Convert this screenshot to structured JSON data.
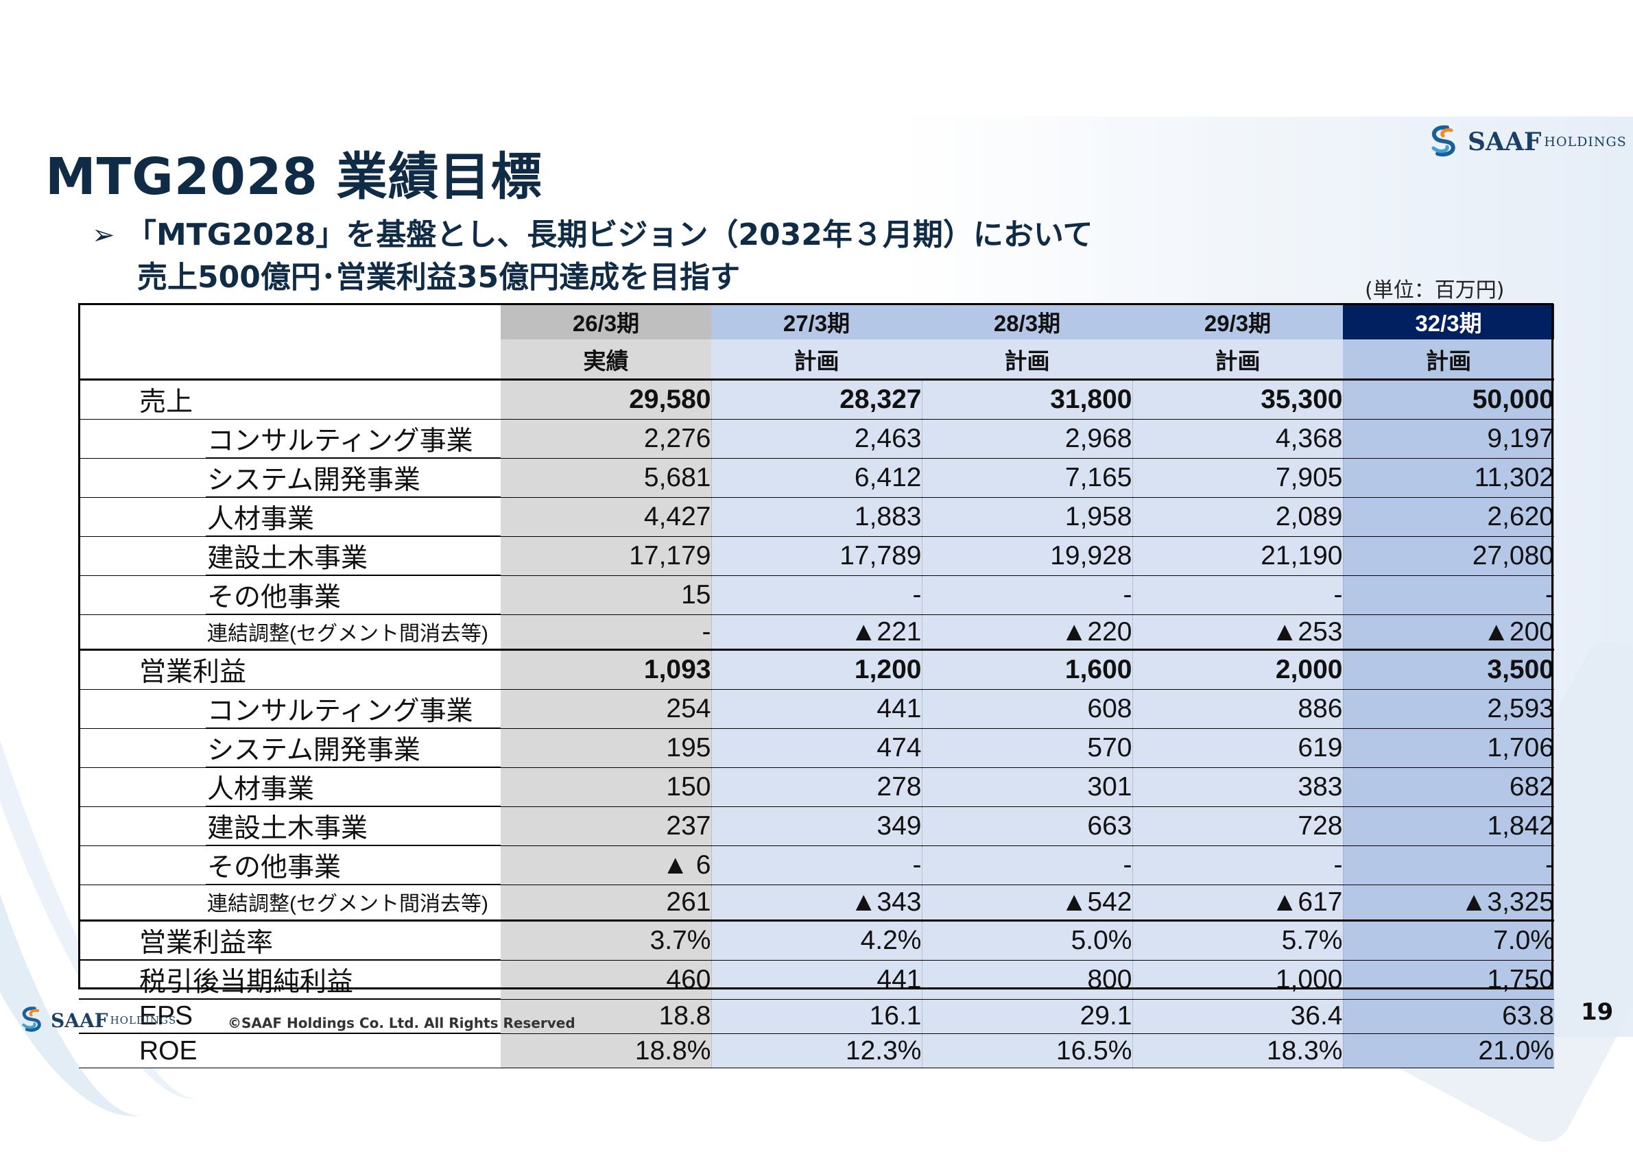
{
  "title": "MTG2028 業績目標",
  "logo": {
    "big": "SAAF",
    "small": "HOLDINGS"
  },
  "subtitle": {
    "bullet": "➢",
    "line1": "「MTG2028」を基盤とし、長期ビジョン（2032年３月期）において",
    "line2": "売上500億円･営業利益35億円達成を目指す"
  },
  "unit_note": "(単位：百万円)",
  "table": {
    "periods": [
      "26/3期",
      "27/3期",
      "28/3期",
      "29/3期",
      "32/3期"
    ],
    "types": [
      "実績",
      "計画",
      "計画",
      "計画",
      "計画"
    ],
    "rows": [
      {
        "label": "売上",
        "values": [
          "29,580",
          "28,327",
          "31,800",
          "35,300",
          "50,000"
        ]
      },
      {
        "label": "コンサルティング事業",
        "values": [
          "2,276",
          "2,463",
          "2,968",
          "4,368",
          "9,197"
        ]
      },
      {
        "label": "システム開発事業",
        "values": [
          "5,681",
          "6,412",
          "7,165",
          "7,905",
          "11,302"
        ]
      },
      {
        "label": "人材事業",
        "values": [
          "4,427",
          "1,883",
          "1,958",
          "2,089",
          "2,620"
        ]
      },
      {
        "label": "建設土木事業",
        "values": [
          "17,179",
          "17,789",
          "19,928",
          "21,190",
          "27,080"
        ]
      },
      {
        "label": "その他事業",
        "values": [
          "15",
          "-",
          "-",
          "-",
          "-"
        ]
      },
      {
        "label": "連結調整(セグメント間消去等)",
        "values": [
          "-",
          "▲221",
          "▲220",
          "▲253",
          "▲200"
        ]
      },
      {
        "label": "営業利益",
        "values": [
          "1,093",
          "1,200",
          "1,600",
          "2,000",
          "3,500"
        ]
      },
      {
        "label": "コンサルティング事業",
        "values": [
          "254",
          "441",
          "608",
          "886",
          "2,593"
        ]
      },
      {
        "label": "システム開発事業",
        "values": [
          "195",
          "474",
          "570",
          "619",
          "1,706"
        ]
      },
      {
        "label": "人材事業",
        "values": [
          "150",
          "278",
          "301",
          "383",
          "682"
        ]
      },
      {
        "label": "建設土木事業",
        "values": [
          "237",
          "349",
          "663",
          "728",
          "1,842"
        ]
      },
      {
        "label": "その他事業",
        "values": [
          "▲ 6",
          "-",
          "-",
          "-",
          "-"
        ]
      },
      {
        "label": "連結調整(セグメント間消去等)",
        "values": [
          "261",
          "▲343",
          "▲542",
          "▲617",
          "▲3,325"
        ]
      },
      {
        "label": "営業利益率",
        "values": [
          "3.7%",
          "4.2%",
          "5.0%",
          "5.7%",
          "7.0%"
        ]
      },
      {
        "label": "税引後当期純利益",
        "values": [
          "460",
          "441",
          "800",
          "1,000",
          "1,750"
        ]
      },
      {
        "label": "EPS",
        "values": [
          "18.8",
          "16.1",
          "29.1",
          "36.4",
          "63.8"
        ]
      },
      {
        "label": "ROE",
        "values": [
          "18.8%",
          "12.3%",
          "16.5%",
          "18.3%",
          "21.0%"
        ]
      }
    ]
  },
  "footer": {
    "copyright": "©SAAF Holdings Co. Ltd. All Rights Reserved",
    "page_number": "19"
  },
  "colors": {
    "title": "#0f2b46",
    "actual_column": "#d9d9d9",
    "plan_column": "#d9e2f3",
    "target_column": "#b4c7e7",
    "target_header": "#002060"
  }
}
